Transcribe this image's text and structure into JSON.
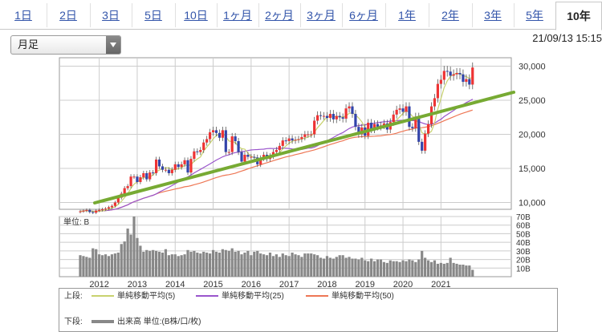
{
  "tabs": [
    "1日",
    "2日",
    "3日",
    "5日",
    "10日",
    "1ヶ月",
    "2ヶ月",
    "3ヶ月",
    "6ヶ月",
    "1年",
    "2年",
    "3年",
    "5年",
    "10年"
  ],
  "active_tab": "10年",
  "period_select": {
    "value": "月足",
    "icon": "chevron-down-icon"
  },
  "timestamp": "21/09/13 15:15",
  "colors": {
    "up": "#ee3333",
    "down": "#3344aa",
    "ma5": "#c8d26e",
    "ma25": "#9a55cc",
    "ma50": "#ee7755",
    "trend": "#77aa33",
    "volume": "#888888",
    "grid": "#cccccc"
  },
  "legend": {
    "upper_label": "上段:",
    "lower_label": "下段:",
    "ma5": "単純移動平均(5)",
    "ma25": "単純移動平均(25)",
    "ma50": "単純移動平均(50)",
    "volume": "出来高 単位:(B株/口/枚)"
  },
  "chart_data": [
    {
      "type": "candlestick",
      "x_ticks": [
        "2012",
        "2013",
        "2014",
        "2015",
        "2016",
        "2017",
        "2018",
        "2019",
        "2020",
        "2021"
      ],
      "y_ticks": [
        "30,000",
        "25,000",
        "20,000",
        "15,000",
        "10,000"
      ],
      "ylim": [
        7500,
        31500
      ],
      "close": [
        8700,
        8800,
        8900,
        8600,
        8500,
        8800,
        8900,
        9000,
        9100,
        9300,
        9500,
        10000,
        10700,
        11300,
        12100,
        12400,
        13800,
        13800,
        13000,
        13700,
        14300,
        13400,
        14400,
        14300,
        16300,
        15300,
        14800,
        14800,
        14300,
        14800,
        15600,
        15200,
        15600,
        16200,
        14400,
        16400,
        17500,
        17400,
        17700,
        18800,
        19300,
        20300,
        20600,
        20200,
        19500,
        20600,
        17400,
        17400,
        19700,
        19000,
        17400,
        16000,
        17000,
        16700,
        16700,
        16600,
        15600,
        16500,
        17000,
        16400,
        16800,
        17400,
        17700,
        18300,
        19100,
        19000,
        19400,
        19100,
        19200,
        19300,
        19600,
        20000,
        20000,
        20000,
        22000,
        22800,
        22700,
        22700,
        22400,
        23000,
        22200,
        22700,
        22500,
        22300,
        23800,
        24100,
        23000,
        21100,
        20000,
        21000,
        19800,
        21700,
        20700,
        21500,
        21100,
        21300,
        21600,
        20700,
        21800,
        22900,
        23600,
        23800,
        23300,
        24100,
        21100,
        20900,
        22600,
        18900,
        17600,
        20100,
        21500,
        24100,
        25300,
        27400,
        28000,
        29300,
        29200,
        28600,
        28800,
        29000,
        28800,
        27700,
        28100,
        27300,
        29800
      ],
      "volume_ticks": [
        "70B",
        "60B",
        "50B",
        "40B",
        "30B",
        "20B",
        "10B"
      ],
      "volume_range": [
        0,
        70
      ],
      "volume": [
        25,
        24,
        23,
        22,
        33,
        32,
        26,
        25,
        26,
        24,
        26,
        27,
        28,
        38,
        41,
        56,
        49,
        70,
        45,
        36,
        29,
        31,
        30,
        31,
        30,
        29,
        28,
        32,
        25,
        26,
        26,
        24,
        25,
        26,
        31,
        29,
        30,
        28,
        27,
        29,
        28,
        27,
        31,
        29,
        28,
        32,
        31,
        30,
        33,
        29,
        30,
        26,
        28,
        30,
        25,
        29,
        30,
        27,
        26,
        25,
        28,
        24,
        26,
        23,
        27,
        25,
        24,
        28,
        26,
        25,
        23,
        27,
        27,
        27,
        26,
        25,
        22,
        21,
        24,
        22,
        21,
        23,
        25,
        25,
        22,
        23,
        21,
        21,
        20,
        22,
        19,
        18,
        21,
        18,
        20,
        20,
        17,
        16,
        19,
        18,
        18,
        17,
        19,
        18,
        20,
        19,
        17,
        20,
        30,
        22,
        19,
        17,
        19,
        15,
        16,
        15,
        16,
        22,
        16,
        15,
        14,
        14,
        13,
        13,
        8
      ],
      "ma_labels": [
        "単純移動平均(5)",
        "単純移動平均(25)",
        "単純移動平均(50)"
      ],
      "volume_label": "単位: B"
    }
  ]
}
